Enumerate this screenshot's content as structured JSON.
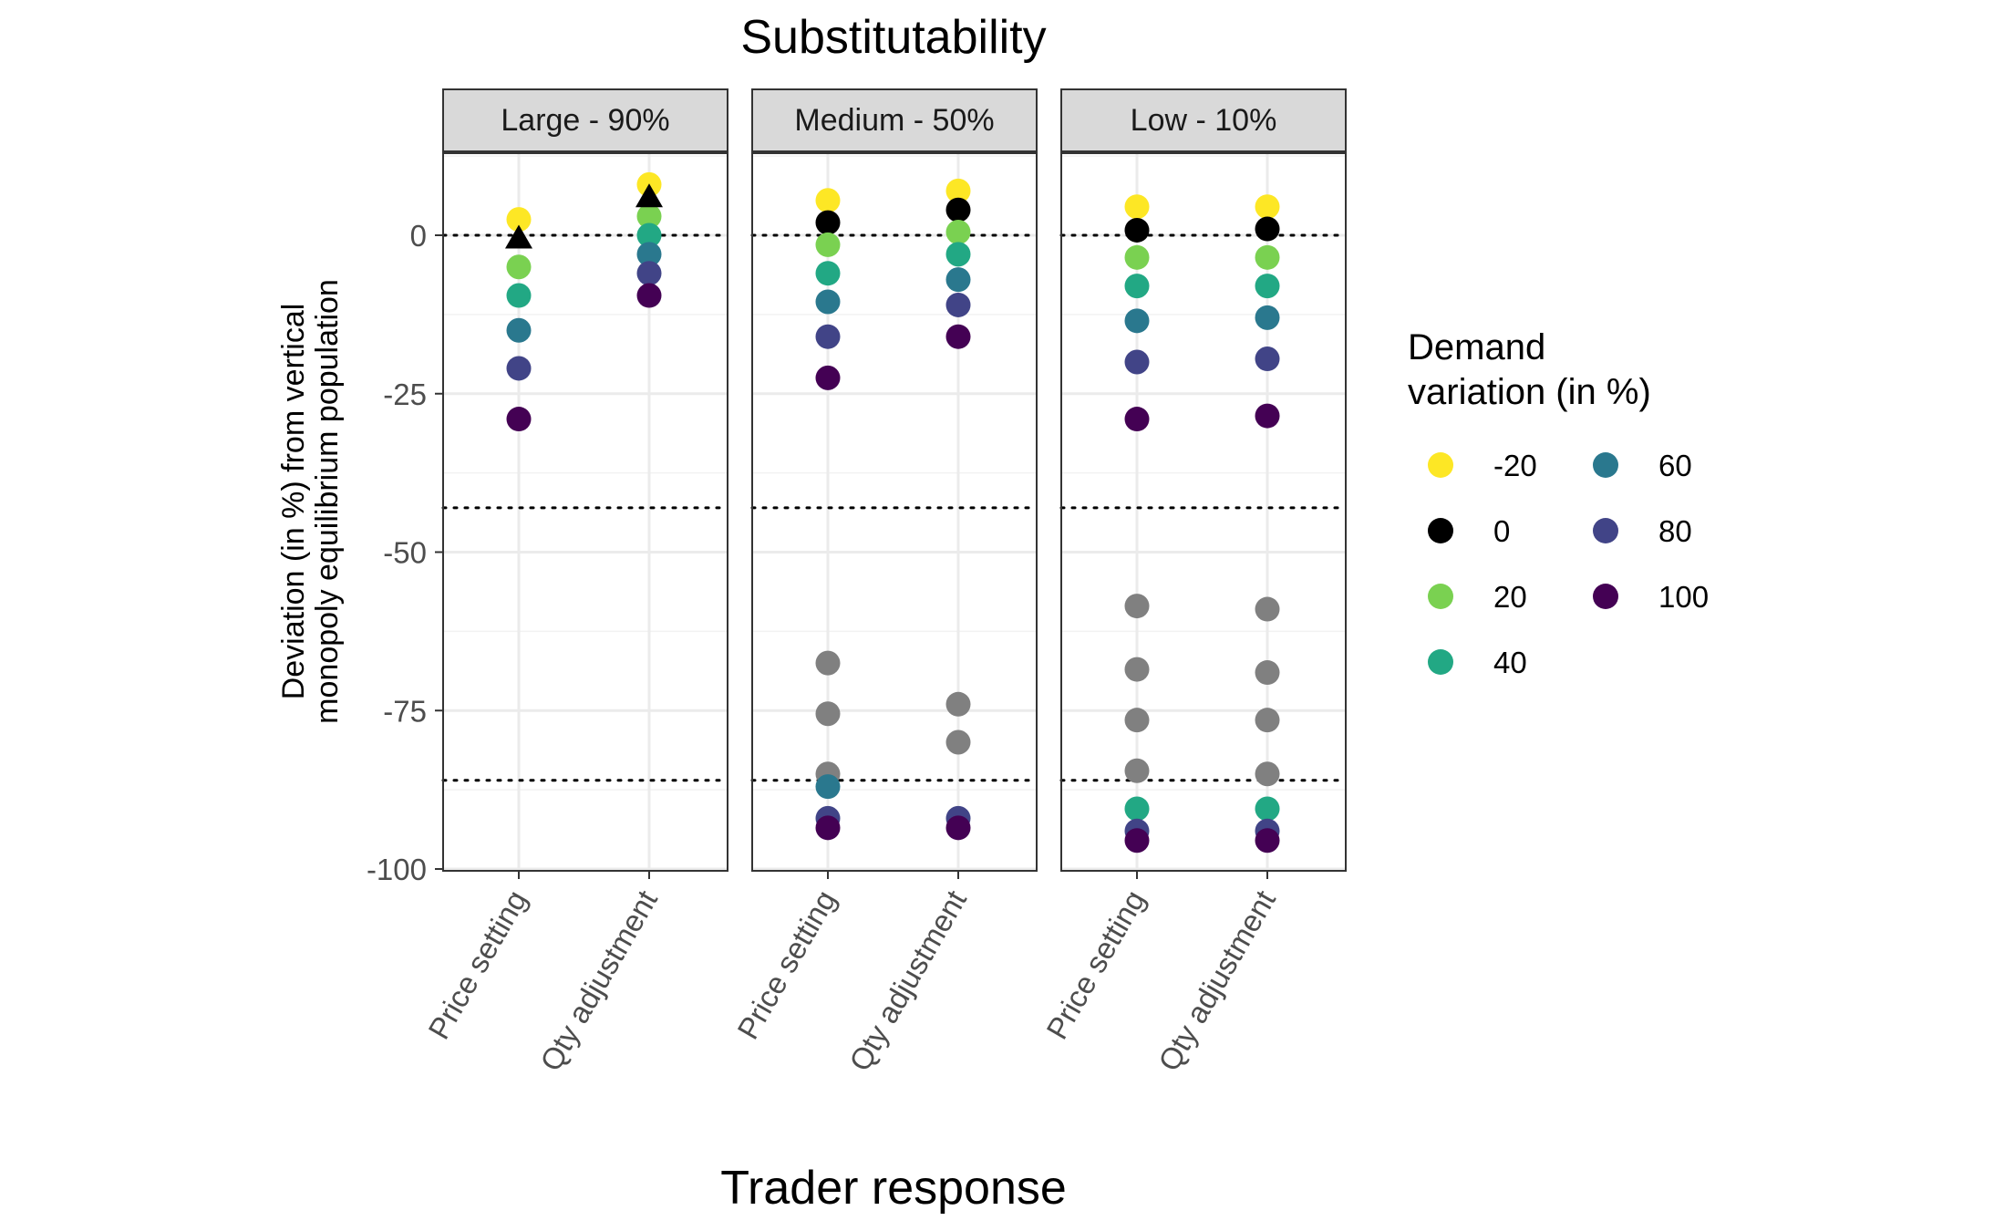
{
  "chart_data": {
    "type": "scatter",
    "title": "Substitutability",
    "xlabel": "Trader response",
    "ylabel_lines": [
      "Deviation (in %) from vertical",
      "monopoly equilibrium population"
    ],
    "ylim": [
      -100,
      12
    ],
    "yticks": [
      0,
      -25,
      -50,
      -75,
      -100
    ],
    "ytick_labels": [
      "0",
      "-25",
      "-50",
      "-75",
      "-100"
    ],
    "categories": [
      "Price setting",
      "Qty adjustment"
    ],
    "reference_lines": [
      0,
      -43,
      -86
    ],
    "grid": true,
    "legend": {
      "title_lines": [
        "Demand",
        "variation (in %)"
      ],
      "position": "right",
      "items": [
        {
          "label": "-20",
          "color": "#FDE725"
        },
        {
          "label": "0",
          "color": "#000000"
        },
        {
          "label": "20",
          "color": "#7AD151"
        },
        {
          "label": "40",
          "color": "#22A884"
        },
        {
          "label": "60",
          "color": "#2A788E"
        },
        {
          "label": "80",
          "color": "#414487"
        },
        {
          "label": "100",
          "color": "#440154"
        }
      ]
    },
    "unlabeled_point_color": "#808080",
    "panels": [
      {
        "label": "Large - 90%",
        "series": [
          {
            "category": "Price setting",
            "points": [
              {
                "y": 2.5,
                "color": "#FDE725"
              },
              {
                "y": -5,
                "color": "#7AD151"
              },
              {
                "y": -9.5,
                "color": "#22A884"
              },
              {
                "y": -15,
                "color": "#2A788E"
              },
              {
                "y": -21,
                "color": "#414487"
              },
              {
                "y": -29,
                "color": "#440154"
              }
            ]
          },
          {
            "category": "Qty adjustment",
            "points": [
              {
                "y": 8,
                "color": "#FDE725"
              },
              {
                "y": 3,
                "color": "#7AD151"
              },
              {
                "y": 0,
                "color": "#22A884"
              },
              {
                "y": -3,
                "color": "#2A788E"
              },
              {
                "y": -6,
                "color": "#414487"
              },
              {
                "y": -9.5,
                "color": "#440154"
              }
            ]
          }
        ],
        "triangles": [
          {
            "category": "Price setting",
            "y": -0.5
          },
          {
            "category": "Qty adjustment",
            "y": 6
          }
        ]
      },
      {
        "label": "Medium - 50%",
        "series": [
          {
            "category": "Price setting",
            "points": [
              {
                "y": 5.5,
                "color": "#FDE725"
              },
              {
                "y": 2,
                "color": "#000000"
              },
              {
                "y": -1.5,
                "color": "#7AD151"
              },
              {
                "y": -6,
                "color": "#22A884"
              },
              {
                "y": -10.5,
                "color": "#2A788E"
              },
              {
                "y": -16,
                "color": "#414487"
              },
              {
                "y": -22.5,
                "color": "#440154"
              },
              {
                "y": -67.5,
                "color": "#808080"
              },
              {
                "y": -75.5,
                "color": "#808080"
              },
              {
                "y": -85,
                "color": "#808080"
              },
              {
                "y": -87,
                "color": "#2A788E"
              },
              {
                "y": -92,
                "color": "#414487"
              },
              {
                "y": -93.5,
                "color": "#440154"
              }
            ]
          },
          {
            "category": "Qty adjustment",
            "points": [
              {
                "y": 7,
                "color": "#FDE725"
              },
              {
                "y": 4,
                "color": "#000000"
              },
              {
                "y": 0.5,
                "color": "#7AD151"
              },
              {
                "y": -3,
                "color": "#22A884"
              },
              {
                "y": -7,
                "color": "#2A788E"
              },
              {
                "y": -11,
                "color": "#414487"
              },
              {
                "y": -16,
                "color": "#440154"
              },
              {
                "y": -74,
                "color": "#808080"
              },
              {
                "y": -80,
                "color": "#808080"
              },
              {
                "y": -92,
                "color": "#414487"
              },
              {
                "y": -93.5,
                "color": "#440154"
              }
            ]
          }
        ],
        "triangles": []
      },
      {
        "label": "Low - 10%",
        "series": [
          {
            "category": "Price setting",
            "points": [
              {
                "y": 4.5,
                "color": "#FDE725"
              },
              {
                "y": 0.8,
                "color": "#000000"
              },
              {
                "y": -3.5,
                "color": "#7AD151"
              },
              {
                "y": -8,
                "color": "#22A884"
              },
              {
                "y": -13.5,
                "color": "#2A788E"
              },
              {
                "y": -20,
                "color": "#414487"
              },
              {
                "y": -29,
                "color": "#440154"
              },
              {
                "y": -58.5,
                "color": "#808080"
              },
              {
                "y": -68.5,
                "color": "#808080"
              },
              {
                "y": -76.5,
                "color": "#808080"
              },
              {
                "y": -84.5,
                "color": "#808080"
              },
              {
                "y": -90.5,
                "color": "#22A884"
              },
              {
                "y": -94,
                "color": "#414487"
              },
              {
                "y": -95.5,
                "color": "#440154"
              }
            ]
          },
          {
            "category": "Qty adjustment",
            "points": [
              {
                "y": 4.5,
                "color": "#FDE725"
              },
              {
                "y": 1,
                "color": "#000000"
              },
              {
                "y": -3.5,
                "color": "#7AD151"
              },
              {
                "y": -8,
                "color": "#22A884"
              },
              {
                "y": -13,
                "color": "#2A788E"
              },
              {
                "y": -19.5,
                "color": "#414487"
              },
              {
                "y": -28.5,
                "color": "#440154"
              },
              {
                "y": -59,
                "color": "#808080"
              },
              {
                "y": -69,
                "color": "#808080"
              },
              {
                "y": -76.5,
                "color": "#808080"
              },
              {
                "y": -85,
                "color": "#808080"
              },
              {
                "y": -90.5,
                "color": "#22A884"
              },
              {
                "y": -94,
                "color": "#414487"
              },
              {
                "y": -95.5,
                "color": "#440154"
              }
            ]
          }
        ],
        "triangles": []
      }
    ]
  }
}
